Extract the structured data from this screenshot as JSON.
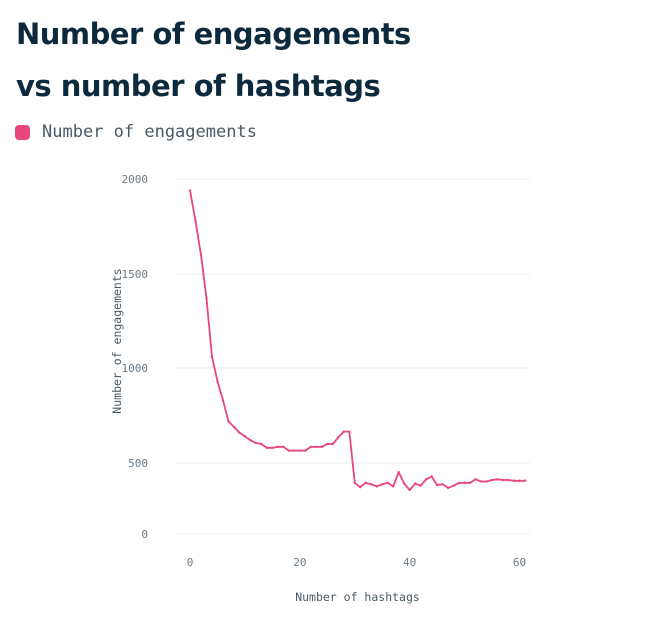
{
  "title_line1": "Number of engagements",
  "title_line2": "vs number of hashtags",
  "legend": {
    "label": "Number of engagements"
  },
  "colors": {
    "series": "#e8467c",
    "grid": "#eeeeee",
    "title": "#0d2a3d"
  },
  "chart_data": {
    "type": "line",
    "title": "Number of engagements vs number of hashtags",
    "xlabel": "Number of hashtags",
    "ylabel": "Number of engagements",
    "xlim": [
      0,
      61
    ],
    "xticks": [
      0,
      20,
      40,
      60
    ],
    "yticks": [
      0,
      500,
      1000,
      1500,
      2000
    ],
    "grid": true,
    "legend_position": "top-left",
    "series": [
      {
        "name": "Number of engagements",
        "x": [
          0,
          1,
          2,
          3,
          4,
          5,
          6,
          7,
          8,
          9,
          10,
          11,
          12,
          13,
          14,
          15,
          16,
          17,
          18,
          19,
          20,
          21,
          22,
          23,
          24,
          25,
          26,
          27,
          28,
          29,
          30,
          31,
          32,
          33,
          34,
          35,
          36,
          37,
          38,
          39,
          40,
          41,
          42,
          43,
          44,
          45,
          46,
          47,
          48,
          49,
          50,
          51,
          52,
          53,
          54,
          55,
          56,
          57,
          58,
          59,
          60,
          61
        ],
        "values": [
          1940,
          1780,
          1600,
          1370,
          1060,
          930,
          830,
          720,
          690,
          660,
          640,
          620,
          605,
          600,
          580,
          580,
          585,
          585,
          565,
          565,
          565,
          565,
          585,
          585,
          585,
          600,
          600,
          635,
          665,
          665,
          360,
          330,
          360,
          350,
          335,
          350,
          360,
          335,
          435,
          355,
          310,
          355,
          340,
          385,
          405,
          345,
          350,
          325,
          340,
          360,
          360,
          360,
          385,
          370,
          370,
          380,
          385,
          380,
          380,
          375,
          375,
          375
        ]
      }
    ]
  }
}
